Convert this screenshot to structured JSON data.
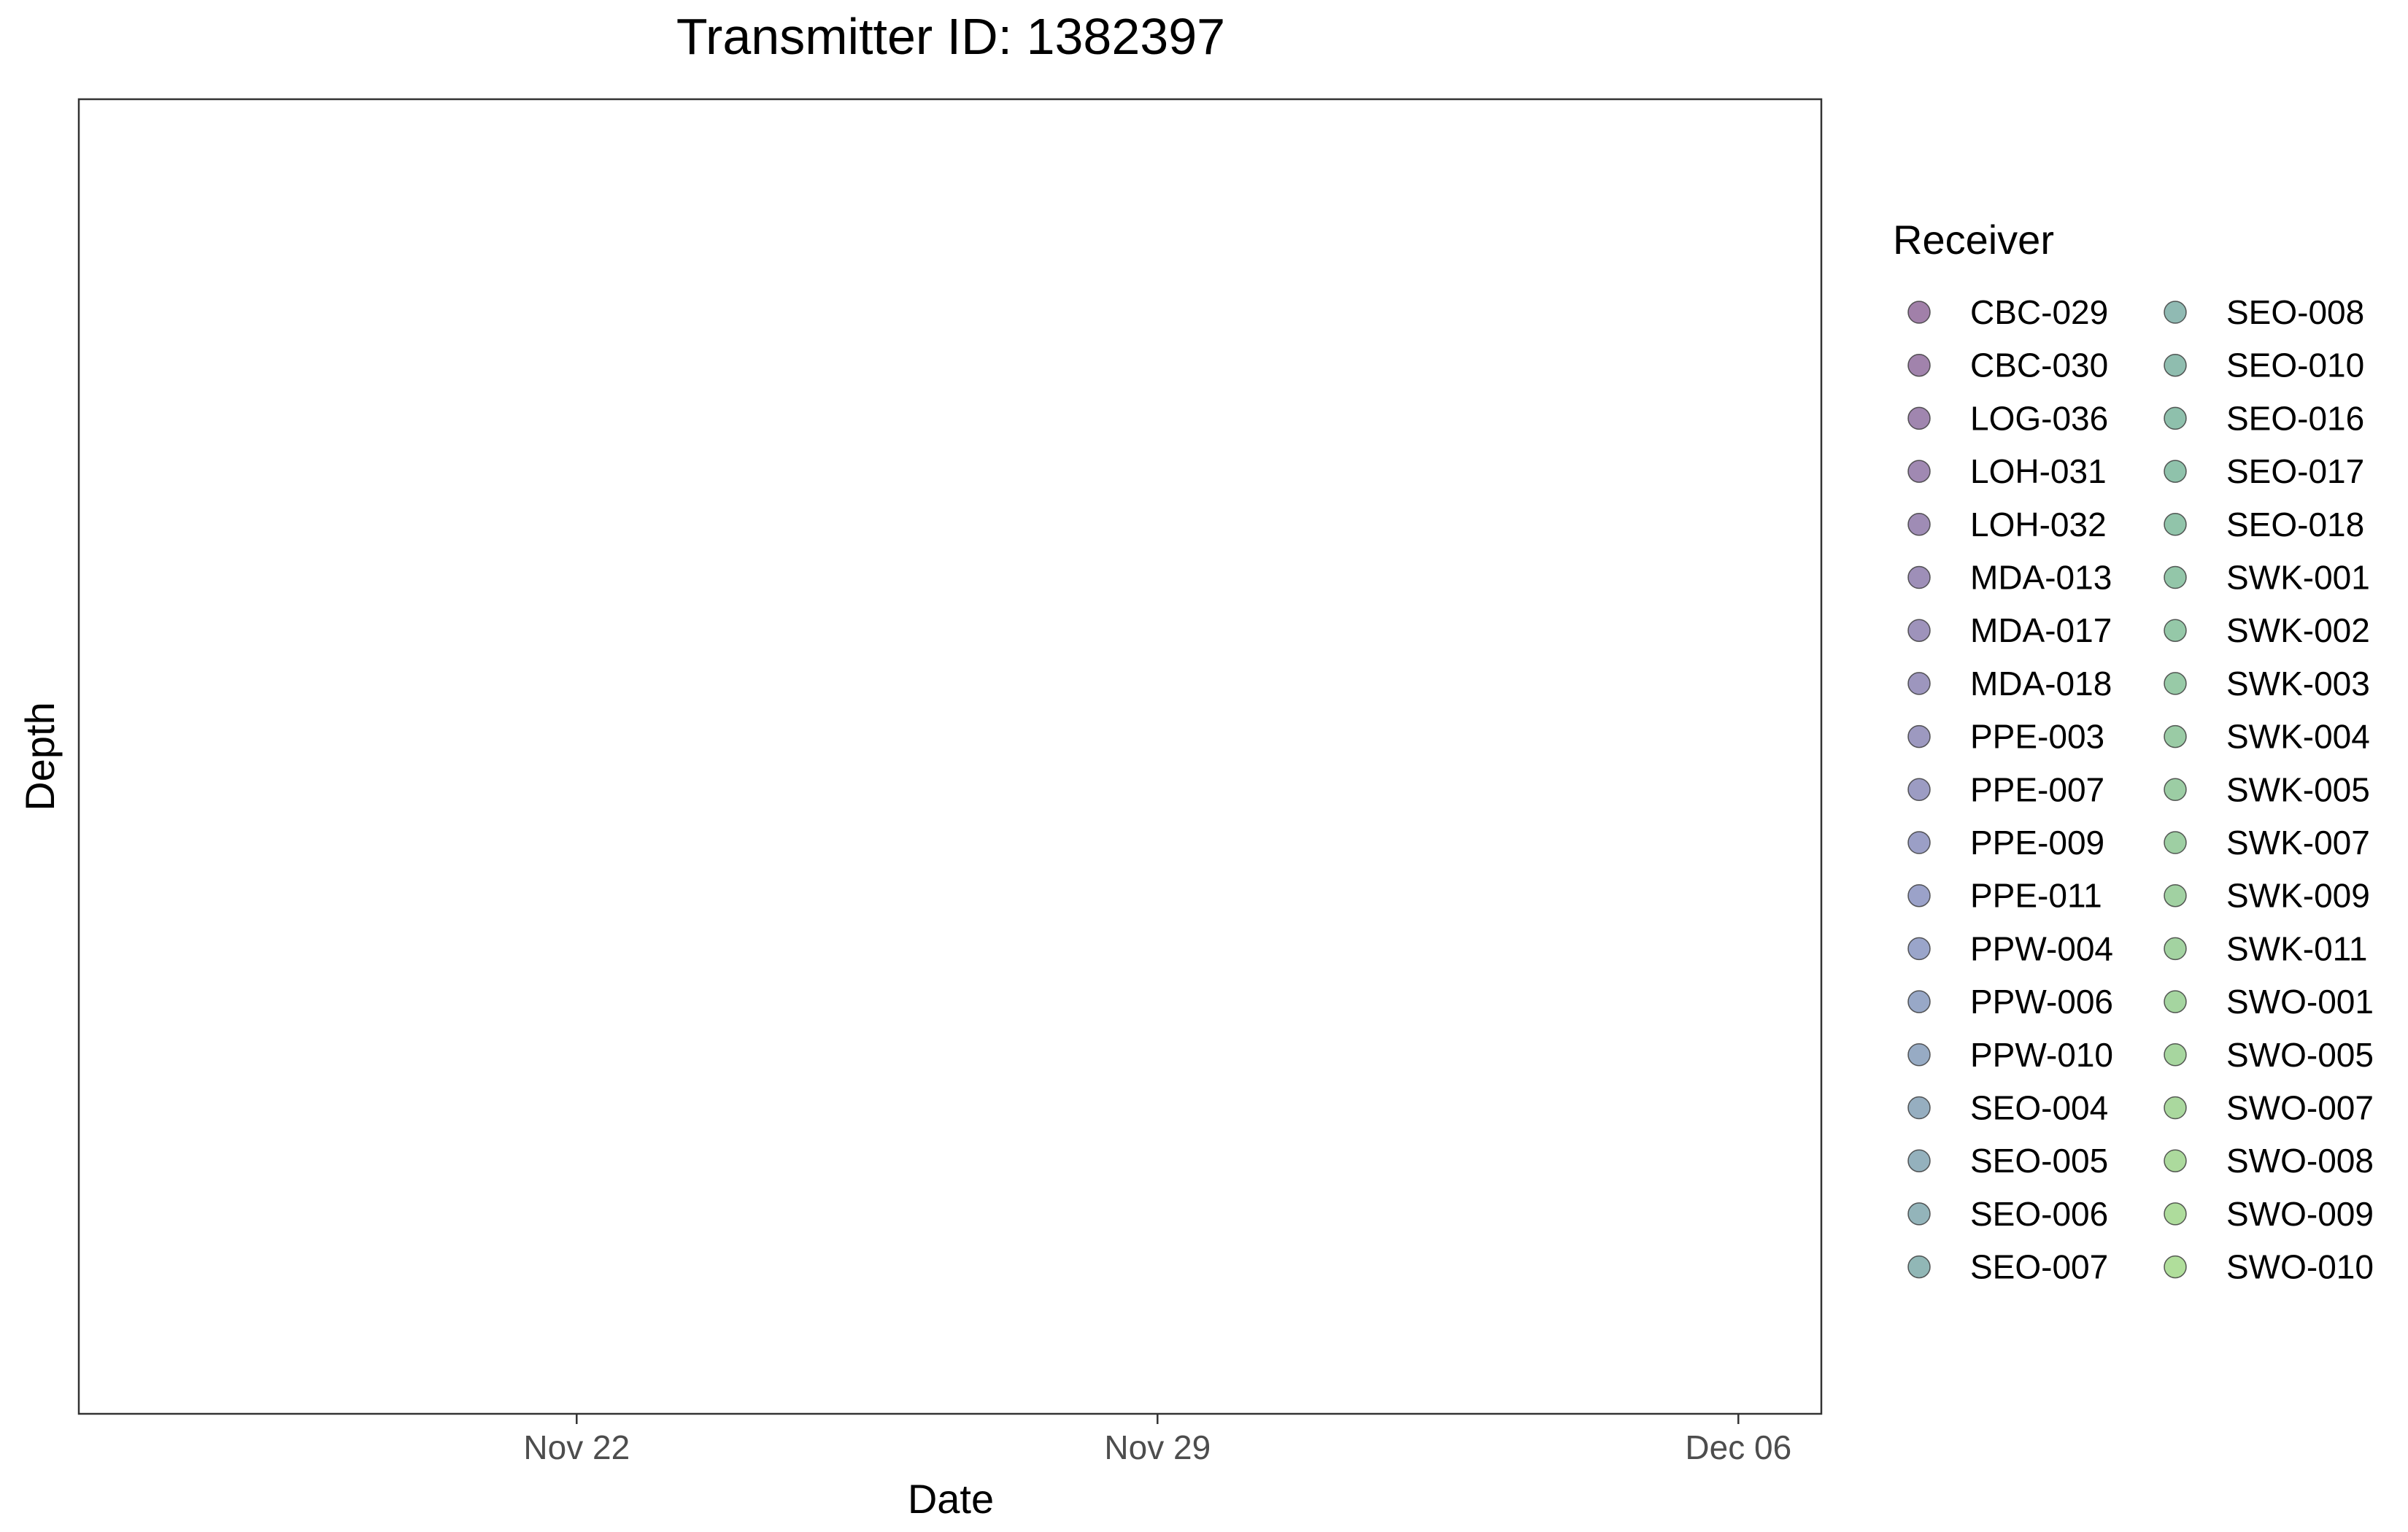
{
  "chart_data": {
    "type": "scatter",
    "title": "Transmitter ID: 1382397",
    "xlabel": "Date",
    "ylabel": "Depth",
    "x_axis": {
      "type": "date",
      "range": [
        "2024-11-16",
        "2024-12-07"
      ],
      "ticks": [
        {
          "date": "2024-11-22",
          "label": "Nov 22"
        },
        {
          "date": "2024-11-29",
          "label": "Nov 29"
        },
        {
          "date": "2024-12-06",
          "label": "Dec 06"
        }
      ]
    },
    "y_axis": {
      "ticks": []
    },
    "grid": false,
    "series": [],
    "legend": {
      "title": "Receiver",
      "placement": "right",
      "columns": 2,
      "marker_opacity": 0.5,
      "items": [
        {
          "name": "CBC-029",
          "color": "#440154"
        },
        {
          "name": "CBC-030",
          "color": "#43075a"
        },
        {
          "name": "LOG-036",
          "color": "#420d60"
        },
        {
          "name": "LOH-031",
          "color": "#411465"
        },
        {
          "name": "LOH-032",
          "color": "#3f1a6b"
        },
        {
          "name": "MDA-013",
          "color": "#3e2071"
        },
        {
          "name": "MDA-017",
          "color": "#3d2777"
        },
        {
          "name": "MDA-018",
          "color": "#3c2d7d"
        },
        {
          "name": "PPE-003",
          "color": "#3b3382"
        },
        {
          "name": "PPE-007",
          "color": "#393988"
        },
        {
          "name": "PPE-009",
          "color": "#38408e"
        },
        {
          "name": "PPE-011",
          "color": "#374694"
        },
        {
          "name": "PPW-004",
          "color": "#354c96"
        },
        {
          "name": "PPW-006",
          "color": "#32528f"
        },
        {
          "name": "PPW-010",
          "color": "#2f5889"
        },
        {
          "name": "SEO-004",
          "color": "#2d5e82"
        },
        {
          "name": "SEO-005",
          "color": "#2a647b"
        },
        {
          "name": "SEO-006",
          "color": "#276a75"
        },
        {
          "name": "SEO-007",
          "color": "#24706e"
        },
        {
          "name": "SEO-008",
          "color": "#227667"
        },
        {
          "name": "SEO-010",
          "color": "#1f7c60"
        },
        {
          "name": "SEO-016",
          "color": "#1d825a"
        },
        {
          "name": "SEO-017",
          "color": "#1f8657"
        },
        {
          "name": "SEO-018",
          "color": "#238a55"
        },
        {
          "name": "SWK-001",
          "color": "#288d53"
        },
        {
          "name": "SWK-002",
          "color": "#2c9151"
        },
        {
          "name": "SWK-003",
          "color": "#31954f"
        },
        {
          "name": "SWK-004",
          "color": "#35984c"
        },
        {
          "name": "SWK-005",
          "color": "#3a9c4a"
        },
        {
          "name": "SWK-007",
          "color": "#3ea048"
        },
        {
          "name": "SWK-009",
          "color": "#43a346"
        },
        {
          "name": "SWK-011",
          "color": "#47a744"
        },
        {
          "name": "SWO-001",
          "color": "#4cab42"
        },
        {
          "name": "SWO-005",
          "color": "#50ae3f"
        },
        {
          "name": "SWO-007",
          "color": "#55b23d"
        },
        {
          "name": "SWO-008",
          "color": "#59b63b"
        },
        {
          "name": "SWO-009",
          "color": "#5eb939"
        },
        {
          "name": "SWO-010",
          "color": "#62bd37"
        }
      ]
    }
  }
}
